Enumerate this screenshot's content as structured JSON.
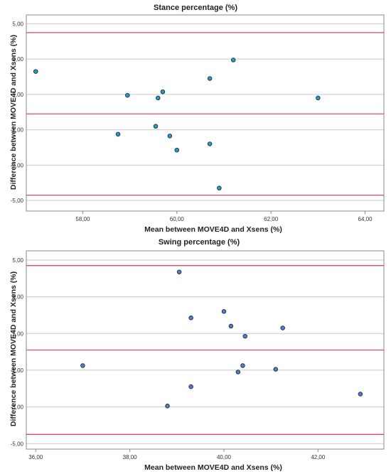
{
  "colors": {
    "plot_bg": "#ffffff",
    "grid": "#c9c9c9",
    "frame": "#8a8a8a",
    "limit_line": "#e0447a",
    "point_fill_top": "#2a9bc3",
    "point_fill_bottom": "#5c79c6",
    "point_stroke": "#1c2a45"
  },
  "chart_data": [
    {
      "type": "scatter",
      "title": "Stance percentage (%)",
      "xlabel": "Mean between MOVE4D and Xsens (%)",
      "ylabel": "Difference between MOVE4D and Xsens (%)",
      "xlim": [
        56.8,
        64.4
      ],
      "ylim": [
        -5.6,
        5.5
      ],
      "x_ticks": [
        58,
        60,
        62,
        64
      ],
      "x_tick_labels": [
        "58,00",
        "60,00",
        "62,00",
        "64,00"
      ],
      "y_ticks": [
        5,
        3,
        1,
        -1,
        -3,
        -5
      ],
      "y_tick_labels": [
        "5,00",
        "3,00",
        "1,00",
        "-1,00",
        "-3,00",
        "-5,00"
      ],
      "grid": {
        "horizontal": true,
        "vertical": false
      },
      "reference_lines": [
        4.5,
        -0.1,
        -4.7
      ],
      "points": [
        {
          "x": 57.0,
          "y": 2.3
        },
        {
          "x": 58.75,
          "y": -1.25
        },
        {
          "x": 58.95,
          "y": 0.95
        },
        {
          "x": 59.55,
          "y": -0.8
        },
        {
          "x": 59.6,
          "y": 0.8
        },
        {
          "x": 59.7,
          "y": 1.15
        },
        {
          "x": 59.85,
          "y": -1.35
        },
        {
          "x": 60.0,
          "y": -2.15
        },
        {
          "x": 60.7,
          "y": -1.8
        },
        {
          "x": 60.7,
          "y": 1.9
        },
        {
          "x": 60.9,
          "y": -4.3
        },
        {
          "x": 61.2,
          "y": 2.95
        },
        {
          "x": 63.0,
          "y": 0.8
        }
      ]
    },
    {
      "type": "scatter",
      "title": "Swing percentage (%)",
      "xlabel": "Mean between MOVE4D and Xsens (%)",
      "ylabel": "Difference between MOVE4D and Xsens (%)",
      "xlim": [
        35.8,
        43.4
      ],
      "ylim": [
        -5.3,
        5.5
      ],
      "x_ticks": [
        36,
        38,
        40,
        42
      ],
      "x_tick_labels": [
        "36,00",
        "38,00",
        "40,00",
        "42,00"
      ],
      "y_ticks": [
        5,
        3,
        1,
        -1,
        -3,
        -5
      ],
      "y_tick_labels": [
        "5,00",
        "3,00",
        "1,00",
        "-1,00",
        "-3,00",
        "-5,00"
      ],
      "grid": {
        "horizontal": true,
        "vertical": false
      },
      "reference_lines": [
        4.7,
        0.1,
        -4.5
      ],
      "points": [
        {
          "x": 37.0,
          "y": -0.75
        },
        {
          "x": 38.8,
          "y": -2.95
        },
        {
          "x": 39.05,
          "y": 4.35
        },
        {
          "x": 39.3,
          "y": 1.85
        },
        {
          "x": 39.3,
          "y": -1.9
        },
        {
          "x": 40.0,
          "y": 2.2
        },
        {
          "x": 40.15,
          "y": 1.4
        },
        {
          "x": 40.3,
          "y": -1.1
        },
        {
          "x": 40.4,
          "y": -0.75
        },
        {
          "x": 40.45,
          "y": 0.85
        },
        {
          "x": 41.1,
          "y": -0.95
        },
        {
          "x": 41.25,
          "y": 1.3
        },
        {
          "x": 42.9,
          "y": -2.3
        }
      ]
    }
  ]
}
